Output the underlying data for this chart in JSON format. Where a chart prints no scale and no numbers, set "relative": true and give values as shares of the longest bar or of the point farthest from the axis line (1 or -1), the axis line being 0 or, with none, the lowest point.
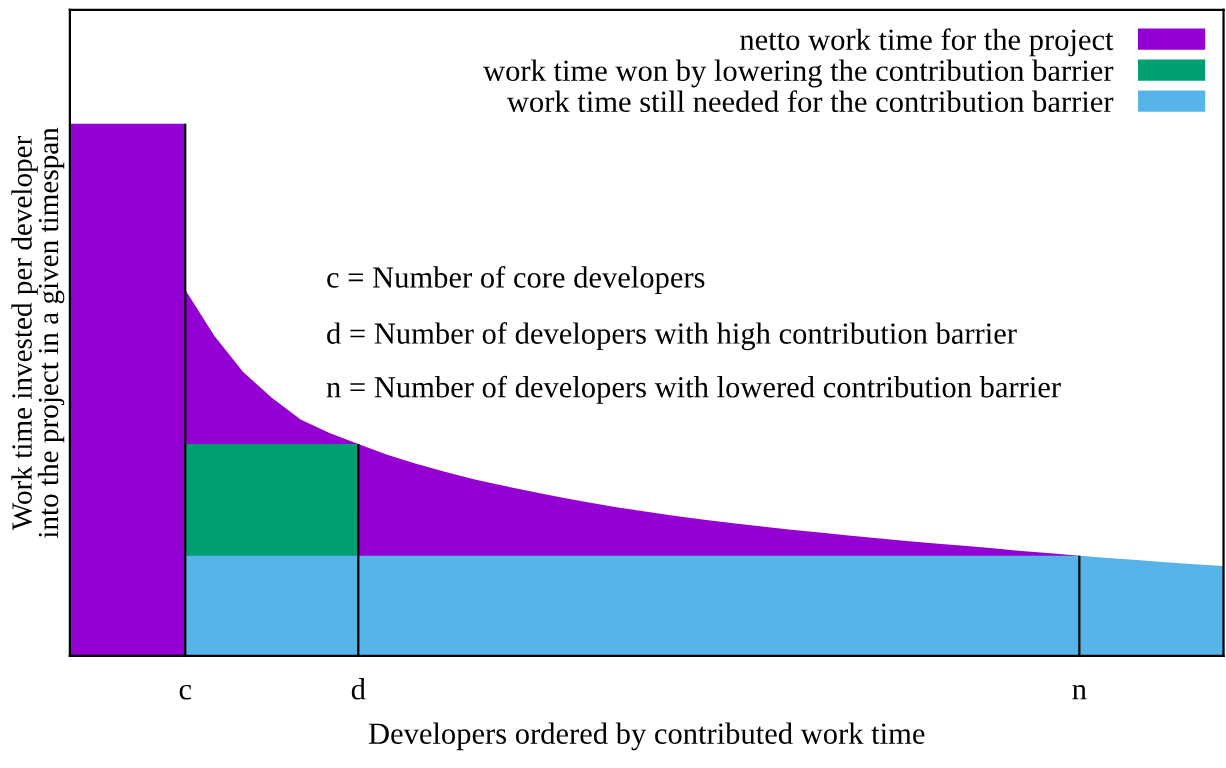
{
  "chart_data": {
    "type": "area",
    "relative": true,
    "xlabel": "Developers ordered by contributed work time",
    "ylabel": "Work time invested per developer\ninto the project in a given timespan",
    "categories": [
      null,
      null,
      null,
      null,
      "c",
      null,
      null,
      null,
      null,
      null,
      "d",
      null,
      null,
      null,
      null,
      null,
      null,
      null,
      null,
      null,
      null,
      null,
      null,
      null,
      null,
      null,
      null,
      null,
      null,
      null,
      null,
      null,
      null,
      null,
      null,
      "n",
      null,
      null,
      null,
      null,
      null
    ],
    "series": [
      {
        "color": "#9400d3",
        "values": [
          1,
          1,
          1,
          1,
          1,
          null,
          null,
          null,
          null,
          null,
          null,
          null,
          null,
          null,
          null,
          null,
          null,
          null,
          null,
          null,
          null,
          null,
          null,
          null,
          null,
          null,
          null,
          null,
          null,
          null,
          null,
          null,
          null,
          null,
          null,
          null,
          null,
          null,
          null,
          null,
          null
        ]
      },
      {
        "name": "netto work time for the project",
        "color": "#9400d3",
        "values": [
          null,
          null,
          null,
          null,
          0.688,
          0.602,
          0.534,
          0.485,
          0.444,
          0.419,
          0.398,
          0.378,
          0.361,
          0.346,
          0.332,
          0.32,
          0.309,
          0.298,
          0.288,
          0.279,
          0.271,
          0.263,
          0.256,
          0.249,
          0.243,
          0.237,
          0.232,
          0.226,
          0.221,
          0.216,
          0.211,
          0.207,
          0.202,
          0.197,
          0.193,
          0.188,
          null,
          null,
          null,
          null,
          null
        ]
      },
      {
        "name": "work time won by lowering the contribution barrier",
        "color": "#009e73",
        "values": [
          null,
          null,
          null,
          null,
          0.398,
          0.398,
          0.398,
          0.398,
          0.398,
          0.398,
          0.398,
          null,
          null,
          null,
          null,
          null,
          null,
          null,
          null,
          null,
          null,
          null,
          null,
          null,
          null,
          null,
          null,
          null,
          null,
          null,
          null,
          null,
          null,
          null,
          null,
          null,
          null,
          null,
          null,
          null,
          null
        ]
      },
      {
        "name": "work time still needed for the contribution barrier",
        "color": "#56b4e9",
        "values": [
          null,
          null,
          null,
          null,
          0.188,
          0.188,
          0.188,
          0.188,
          0.188,
          0.188,
          0.188,
          0.188,
          0.188,
          0.188,
          0.188,
          0.188,
          0.188,
          0.188,
          0.188,
          0.188,
          0.188,
          0.188,
          0.188,
          0.188,
          0.188,
          0.188,
          0.188,
          0.188,
          0.188,
          0.188,
          0.188,
          0.188,
          0.188,
          0.188,
          0.188,
          0.188,
          0.184,
          0.18,
          0.176,
          0.172,
          0.169
        ]
      }
    ],
    "ref_lines": [
      {
        "axis": "x",
        "value": "c",
        "color": "#000000"
      },
      {
        "axis": "x",
        "value": "d",
        "color": "#000000"
      },
      {
        "axis": "x",
        "value": "n",
        "color": "#000000"
      }
    ],
    "annotations": [
      "c = Number of core developers",
      "d = Number of developers with high contribution barrier",
      "n = Number of developers with lowered contribution barrier"
    ],
    "legend": "top right",
    "grid": false
  }
}
